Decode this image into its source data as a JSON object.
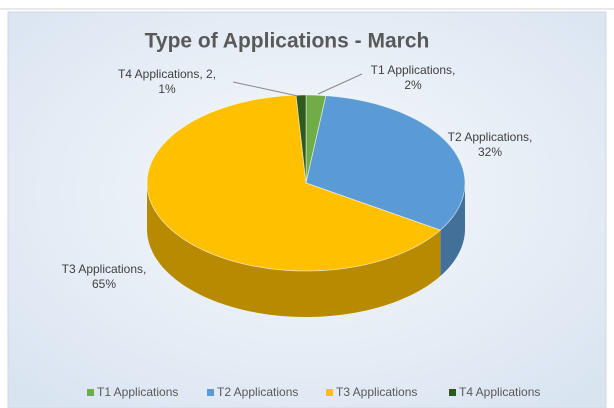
{
  "chart_data": {
    "type": "pie",
    "title": "Type of Applications - March",
    "categories": [
      "T1 Applications",
      "T2 Applications",
      "T3 Applications",
      "T4 Applications"
    ],
    "values": [
      2,
      32,
      65,
      1
    ],
    "value_labels": [
      "T1 Applications, 2%",
      "T2 Applications, 32%",
      "T3 Applications, 65%",
      "T4 Applications, 2, 1%"
    ],
    "colors": [
      "#70ad47",
      "#5b9bd5",
      "#ffc000",
      "#2f5a1f"
    ],
    "legend": "bottom"
  }
}
